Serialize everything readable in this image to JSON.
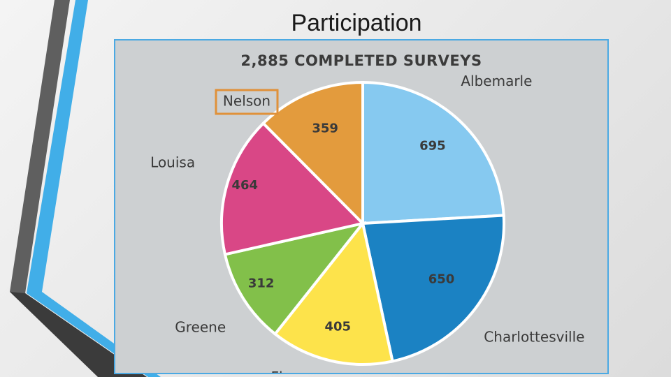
{
  "slide": {
    "title": "Participation"
  },
  "chart_data": {
    "type": "pie",
    "title": "2,885 COMPLETED SURVEYS",
    "categories": [
      "Albemarle",
      "Charlottesville",
      "Fluvanna",
      "Greene",
      "Louisa",
      "Nelson"
    ],
    "values": [
      695,
      650,
      405,
      312,
      464,
      359
    ],
    "highlighted": "Nelson",
    "colors": {
      "Albemarle": "#86c9f0",
      "Charlottesville": "#1b82c3",
      "Fluvanna": "#fde34b",
      "Greene": "#82c04a",
      "Louisa": "#d94786",
      "Nelson": "#e39b3d",
      "highlight_border": "#e0913a",
      "accent": "#4ba9e3"
    }
  }
}
